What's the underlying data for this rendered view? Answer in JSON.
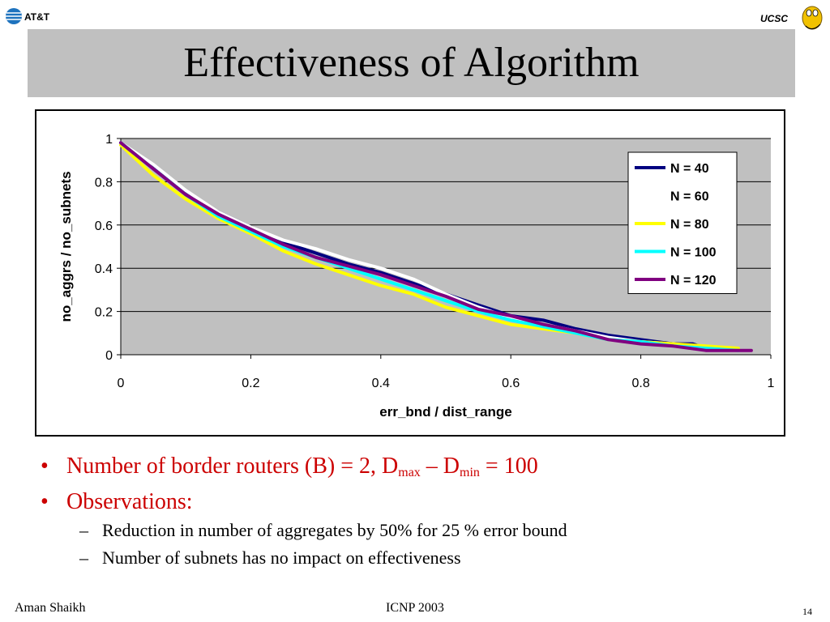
{
  "header": {
    "left_logo_text": "AT&T",
    "right_logo_text": "UCSC"
  },
  "slide": {
    "title": "Effectiveness of Algorithm"
  },
  "chart_data": {
    "type": "line",
    "title": "",
    "xlabel": "err_bnd / dist_range",
    "ylabel": "no_aggrs / no_subnets",
    "xlim": [
      0,
      1
    ],
    "ylim": [
      0,
      1
    ],
    "xticks": [
      "0",
      "0.2",
      "0.4",
      "0.6",
      "0.8",
      "1"
    ],
    "yticks": [
      "0",
      "0.2",
      "0.4",
      "0.6",
      "0.8",
      "1"
    ],
    "grid": "horizontal",
    "legend_position": "top-right",
    "series": [
      {
        "name": "N = 40",
        "color": "#000080",
        "x": [
          0,
          0.05,
          0.1,
          0.15,
          0.2,
          0.25,
          0.3,
          0.35,
          0.4,
          0.45,
          0.5,
          0.55,
          0.6,
          0.65,
          0.7,
          0.75,
          0.8,
          0.85,
          0.88,
          0.9,
          0.95
        ],
        "y": [
          0.98,
          0.87,
          0.75,
          0.66,
          0.59,
          0.52,
          0.47,
          0.42,
          0.38,
          0.33,
          0.28,
          0.23,
          0.18,
          0.16,
          0.12,
          0.09,
          0.07,
          0.05,
          0.05,
          0.03,
          0.03
        ]
      },
      {
        "name": "N = 60",
        "color": "#ffffff",
        "x": [
          0,
          0.05,
          0.1,
          0.15,
          0.2,
          0.25,
          0.3,
          0.35,
          0.4,
          0.45,
          0.5,
          0.55,
          0.6,
          0.65,
          0.7,
          0.75,
          0.8,
          0.85,
          0.9,
          0.95
        ],
        "y": [
          0.98,
          0.88,
          0.76,
          0.66,
          0.59,
          0.53,
          0.49,
          0.44,
          0.4,
          0.35,
          0.28,
          0.22,
          0.17,
          0.14,
          0.11,
          0.08,
          0.06,
          0.05,
          0.03,
          0.03
        ]
      },
      {
        "name": "N = 80",
        "color": "#ffff00",
        "x": [
          0,
          0.05,
          0.1,
          0.15,
          0.2,
          0.25,
          0.3,
          0.35,
          0.4,
          0.45,
          0.5,
          0.55,
          0.6,
          0.65,
          0.7,
          0.75,
          0.8,
          0.85,
          0.9,
          0.95
        ],
        "y": [
          0.97,
          0.83,
          0.72,
          0.63,
          0.56,
          0.48,
          0.42,
          0.37,
          0.32,
          0.28,
          0.22,
          0.18,
          0.14,
          0.12,
          0.1,
          0.07,
          0.06,
          0.05,
          0.04,
          0.03
        ]
      },
      {
        "name": "N = 100",
        "color": "#00ffff",
        "x": [
          0,
          0.05,
          0.1,
          0.15,
          0.2,
          0.25,
          0.3,
          0.35,
          0.4,
          0.45,
          0.5,
          0.55,
          0.6,
          0.65,
          0.7,
          0.75,
          0.8,
          0.85,
          0.9,
          0.95
        ],
        "y": [
          0.98,
          0.86,
          0.74,
          0.64,
          0.57,
          0.5,
          0.45,
          0.4,
          0.35,
          0.3,
          0.25,
          0.2,
          0.16,
          0.13,
          0.1,
          0.07,
          0.06,
          0.04,
          0.03,
          0.02
        ]
      },
      {
        "name": "N = 120",
        "color": "#800080",
        "x": [
          0,
          0.05,
          0.1,
          0.15,
          0.2,
          0.25,
          0.3,
          0.35,
          0.4,
          0.45,
          0.5,
          0.55,
          0.6,
          0.65,
          0.7,
          0.75,
          0.8,
          0.85,
          0.9,
          0.95,
          0.97
        ],
        "y": [
          0.98,
          0.86,
          0.74,
          0.65,
          0.58,
          0.51,
          0.45,
          0.41,
          0.37,
          0.32,
          0.27,
          0.21,
          0.18,
          0.14,
          0.11,
          0.07,
          0.05,
          0.04,
          0.02,
          0.02,
          0.02
        ]
      }
    ]
  },
  "bullets": {
    "b1_prefix": "Number of border routers (B) = 2, D",
    "b1_sub1": "max",
    "b1_mid": " – D",
    "b1_sub2": "min",
    "b1_suffix": " = 100",
    "b2": "Observations:",
    "sub1": "Reduction in number of aggregates by 50% for 25 % error bound",
    "sub2": "Number of subnets has no impact on effectiveness",
    "bullet_char": "•",
    "dash_char": "–"
  },
  "footer": {
    "author": "Aman Shaikh",
    "venue": "ICNP 2003",
    "page": "14"
  }
}
